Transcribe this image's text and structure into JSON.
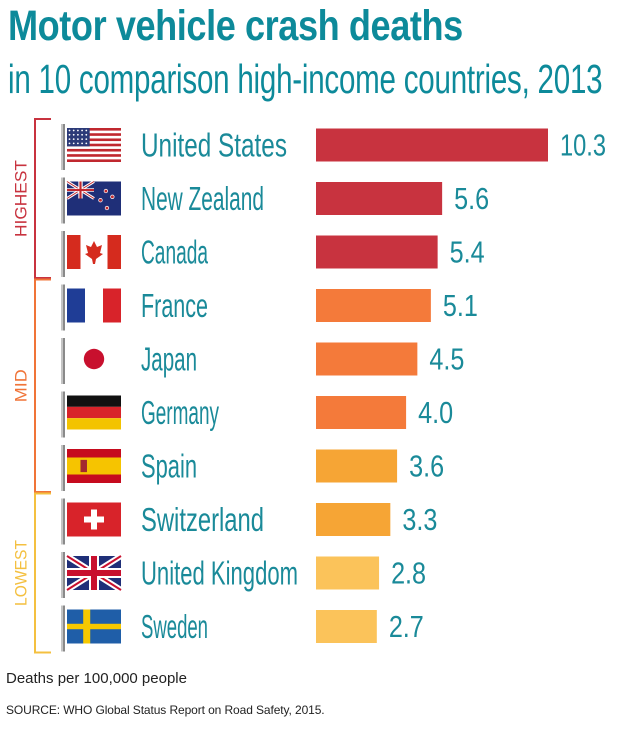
{
  "chart_data": {
    "type": "bar",
    "orientation": "horizontal",
    "title": "Motor vehicle crash deaths",
    "subtitle": "in 10 comparison high-income countries, 2013",
    "categories": [
      "United States",
      "New Zealand",
      "Canada",
      "France",
      "Japan",
      "Germany",
      "Spain",
      "Switzerland",
      "United Kingdom",
      "Sweden"
    ],
    "values": [
      10.3,
      5.6,
      5.4,
      5.1,
      4.5,
      4.0,
      3.6,
      3.3,
      2.8,
      2.7
    ],
    "value_labels": [
      "10.3",
      "5.6",
      "5.4",
      "5.1",
      "4.5",
      "4.0",
      "3.6",
      "3.3",
      "2.8",
      "2.7"
    ],
    "xlabel": "Deaths per 100,000 people",
    "xlim": [
      0,
      10.3
    ],
    "grid": false,
    "groups": [
      {
        "label": "HIGHEST",
        "start": 0,
        "end": 2,
        "color": "#c8333f"
      },
      {
        "label": "MID",
        "start": 3,
        "end": 6,
        "color": "#f07438"
      },
      {
        "label": "LOWEST",
        "start": 7,
        "end": 9,
        "color": "#f4c040"
      }
    ],
    "bar_colors": [
      "#c8333f",
      "#c8333f",
      "#c8333f",
      "#f47a3a",
      "#f47a3a",
      "#f47a3a",
      "#f6a535",
      "#f6a535",
      "#fbc35a",
      "#fbc35a"
    ],
    "flags": [
      "us-flag-icon",
      "nz-flag-icon",
      "canada-flag-icon",
      "france-flag-icon",
      "japan-flag-icon",
      "germany-flag-icon",
      "spain-flag-icon",
      "switzerland-flag-icon",
      "uk-flag-icon",
      "sweden-flag-icon"
    ]
  },
  "source": "SOURCE: WHO Global Status Report on Road Safety, 2015."
}
